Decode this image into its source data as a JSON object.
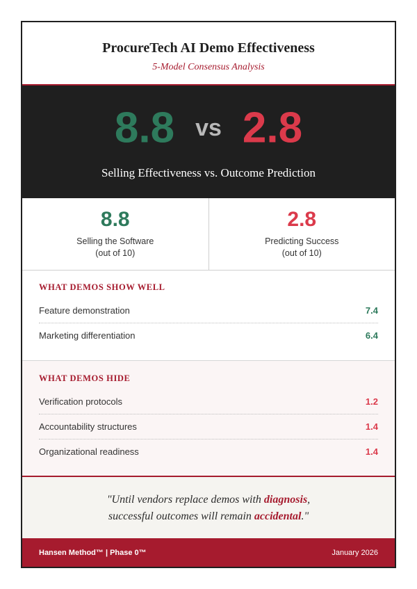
{
  "header": {
    "title": "ProcureTech AI Demo Effectiveness",
    "subtitle": "5-Model Consensus Analysis"
  },
  "hero": {
    "left_score": "8.8",
    "vs": "vs",
    "right_score": "2.8",
    "caption": "Selling Effectiveness vs. Outcome Prediction"
  },
  "comparison": [
    {
      "score": "8.8",
      "label": "Selling the Software",
      "sub": "(out of 10)",
      "color": "#2e7a5c"
    },
    {
      "score": "2.8",
      "label": "Predicting Success",
      "sub": "(out of 10)",
      "color": "#db3a4b"
    }
  ],
  "show_well": {
    "title": "WHAT DEMOS SHOW WELL",
    "items": [
      {
        "label": "Feature demonstration",
        "value": "7.4"
      },
      {
        "label": "Marketing differentiation",
        "value": "6.4"
      }
    ]
  },
  "hide": {
    "title": "WHAT DEMOS HIDE",
    "items": [
      {
        "label": "Verification protocols",
        "value": "1.2"
      },
      {
        "label": "Accountability structures",
        "value": "1.4"
      },
      {
        "label": "Organizational readiness",
        "value": "1.4"
      }
    ]
  },
  "quote": {
    "part1": "\"Until vendors replace demos with ",
    "emph1": "diagnosis",
    "part2": ",",
    "part3": "successful outcomes will remain ",
    "emph2": "accidental",
    "part4": ".\""
  },
  "footer": {
    "left": "Hansen Method™ | Phase 0™",
    "right": "January 2026"
  },
  "colors": {
    "accent": "#a61b2e",
    "positive": "#2e7a5c",
    "negative": "#db3a4b",
    "dark": "#1f1f1f"
  }
}
